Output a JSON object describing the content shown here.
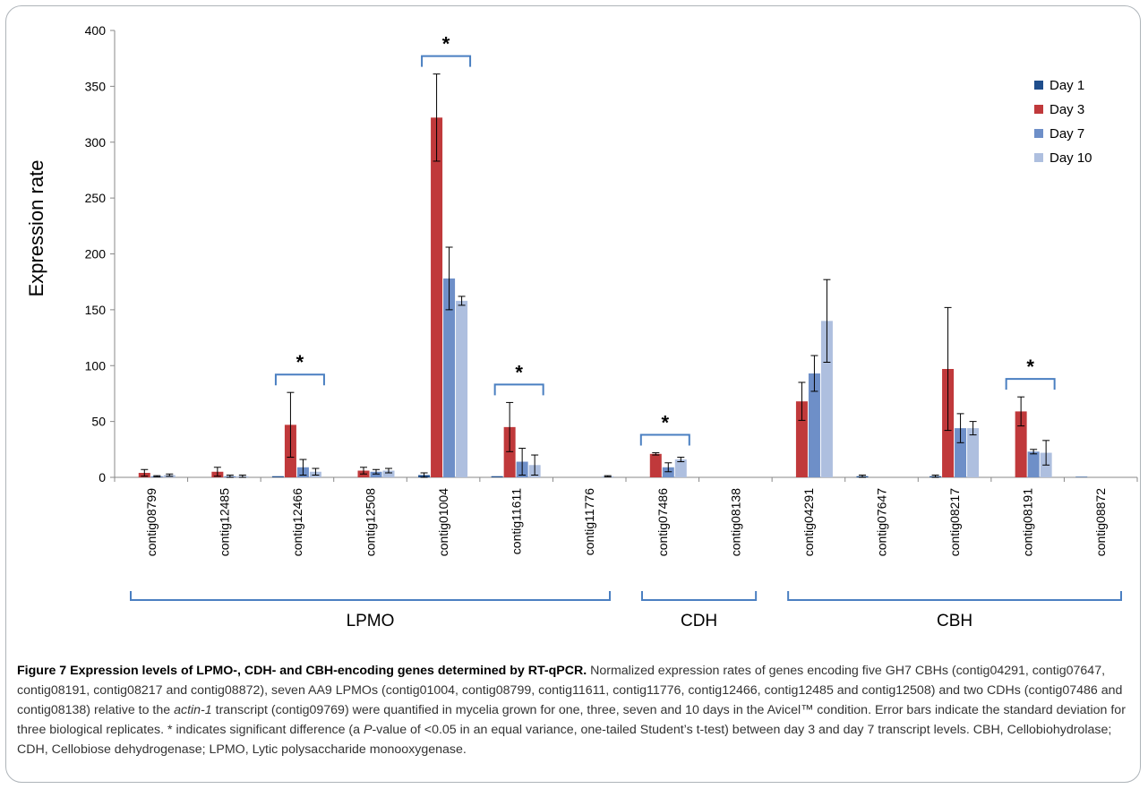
{
  "chart_data": {
    "type": "bar",
    "ylabel": "Expression rate",
    "ylim": [
      0,
      400
    ],
    "yticks": [
      "0",
      "50",
      "100",
      "150",
      "200",
      "250",
      "300",
      "350",
      "400"
    ],
    "categories": [
      "contig08799",
      "contig12485",
      "contig12466",
      "contig12508",
      "contig01004",
      "contig11611",
      "contig11776",
      "contig07486",
      "contig08138",
      "contig04291",
      "contig07647",
      "contig08217",
      "contig08191",
      "contig08872"
    ],
    "series": [
      {
        "name": "Day 1",
        "color": "#1f4e8c",
        "values": [
          0,
          0,
          1,
          0,
          2,
          1,
          0,
          0,
          0,
          0,
          1,
          1,
          0,
          0.5
        ],
        "errors": [
          0,
          0,
          0,
          0,
          2,
          0,
          0,
          0,
          0,
          0,
          1,
          1,
          0,
          0
        ]
      },
      {
        "name": "Day 3",
        "color": "#c0393b",
        "values": [
          4,
          5,
          47,
          6,
          322,
          45,
          0,
          21,
          0,
          68,
          0,
          97,
          59,
          0
        ],
        "errors": [
          3,
          4,
          29,
          3,
          39,
          22,
          0,
          1,
          0,
          17,
          0,
          55,
          13,
          0
        ]
      },
      {
        "name": "Day 7",
        "color": "#6e8fc8",
        "values": [
          1,
          1,
          9,
          5,
          178,
          14,
          0,
          9,
          0,
          93,
          0,
          44,
          23,
          0
        ],
        "errors": [
          0.5,
          1,
          7,
          2,
          28,
          12,
          0,
          4,
          0,
          16,
          0,
          13,
          2,
          0
        ]
      },
      {
        "name": "Day 10",
        "color": "#aebfdf",
        "values": [
          2,
          1,
          5,
          6,
          158,
          11,
          1,
          16,
          0,
          140,
          0,
          44,
          22,
          0
        ],
        "errors": [
          1,
          1,
          3,
          2,
          4,
          9,
          0.5,
          2,
          0,
          37,
          0,
          6,
          11,
          0
        ]
      }
    ],
    "legend_position": "top-right",
    "significance": [
      {
        "category_index": 2,
        "label": "*"
      },
      {
        "category_index": 4,
        "label": "*"
      },
      {
        "category_index": 5,
        "label": "*"
      },
      {
        "category_index": 7,
        "label": "*"
      },
      {
        "category_index": 12,
        "label": "*"
      }
    ],
    "groups": [
      {
        "label": "LPMO",
        "from": 0,
        "to": 6
      },
      {
        "label": "CDH",
        "from": 7,
        "to": 8
      },
      {
        "label": "CBH",
        "from": 9,
        "to": 13
      }
    ],
    "grid": false
  },
  "caption": {
    "bold": "Figure 7 Expression levels of LPMO-, CDH- and CBH-encoding genes determined by RT-qPCR.",
    "text1": " Normalized expression rates of genes encoding five GH7 CBHs (contig04291, contig07647, contig08191, contig08217 and contig08872), seven AA9 LPMOs (contig01004, contig08799, contig11611, contig11776, contig12466, contig12485 and contig12508) and two CDHs (contig07486 and contig08138) relative to the ",
    "italic1": "actin-1",
    "text2": " transcript (contig09769) were quantified in mycelia grown for one, three, seven and 10 days in the Avicel™ condition. Error bars indicate the standard deviation for three biological replicates. * indicates significant difference (a ",
    "italic2": "P",
    "text3": "-value of <0.05 in an equal variance, one-tailed Student’s t-test) between day 3 and day 7 transcript levels. CBH, Cellobiohydrolase; CDH, Cellobiose dehydrogenase; LPMO, Lytic polysaccharide monooxygenase."
  },
  "colors": {
    "bracket": "#4a7fc1",
    "axis": "#888888",
    "frame": "#aeb4b9"
  }
}
